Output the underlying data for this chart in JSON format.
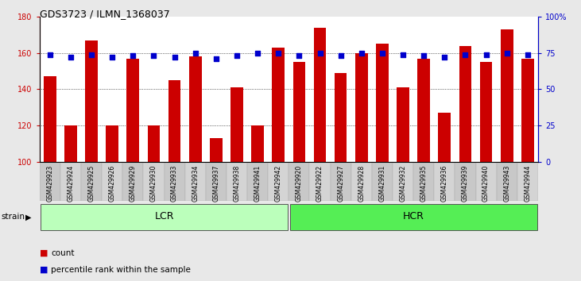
{
  "title": "GDS3723 / ILMN_1368037",
  "categories": [
    "GSM429923",
    "GSM429924",
    "GSM429925",
    "GSM429926",
    "GSM429929",
    "GSM429930",
    "GSM429933",
    "GSM429934",
    "GSM429937",
    "GSM429938",
    "GSM429941",
    "GSM429942",
    "GSM429920",
    "GSM429922",
    "GSM429927",
    "GSM429928",
    "GSM429931",
    "GSM429932",
    "GSM429935",
    "GSM429936",
    "GSM429939",
    "GSM429940",
    "GSM429943",
    "GSM429944"
  ],
  "bar_values": [
    147,
    120,
    167,
    120,
    157,
    120,
    145,
    158,
    113,
    141,
    120,
    163,
    155,
    174,
    149,
    160,
    165,
    141,
    157,
    127,
    164,
    155,
    173,
    157
  ],
  "percentile_values": [
    74,
    72,
    74,
    72,
    73,
    73,
    72,
    75,
    71,
    73,
    75,
    75,
    73,
    75,
    73,
    75,
    75,
    74,
    73,
    72,
    74,
    74,
    75,
    74
  ],
  "groups": [
    {
      "label": "LCR",
      "start": 0,
      "end": 12,
      "color": "#bbffbb"
    },
    {
      "label": "HCR",
      "start": 12,
      "end": 24,
      "color": "#55ee55"
    }
  ],
  "bar_color": "#cc0000",
  "dot_color": "#0000cc",
  "ylim_left": [
    100,
    180
  ],
  "ylim_right": [
    0,
    100
  ],
  "yticks_left": [
    100,
    120,
    140,
    160,
    180
  ],
  "yticks_right": [
    0,
    25,
    50,
    75,
    100
  ],
  "ytick_labels_right": [
    "0",
    "25",
    "50",
    "75",
    "100%"
  ],
  "bg_color": "#e8e8e8",
  "plot_bg_color": "#ffffff",
  "strain_label": "strain",
  "legend_count_label": "count",
  "legend_pct_label": "percentile rank within the sample"
}
